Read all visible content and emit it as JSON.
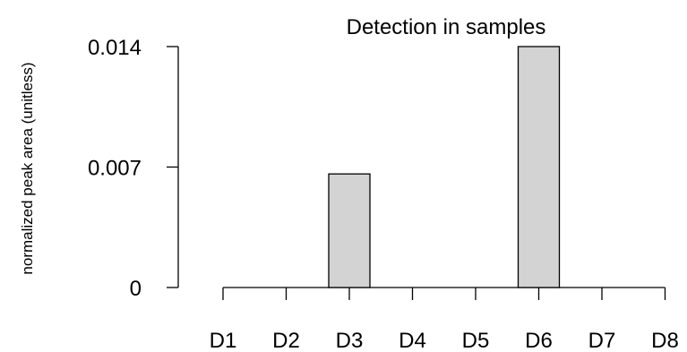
{
  "chart_data": {
    "type": "bar",
    "title": "Detection in samples",
    "xlabel": "",
    "ylabel": "normalized peak area (unitless)",
    "categories": [
      "D1",
      "D2",
      "D3",
      "D4",
      "D5",
      "D6",
      "D7",
      "D8"
    ],
    "values": [
      0,
      0,
      0.0066,
      0,
      0,
      0.014,
      0,
      0
    ],
    "ylim": [
      0,
      0.014
    ],
    "yticks": [
      "0",
      "0.007",
      "0.014"
    ],
    "yticks_values": [
      0,
      0.007,
      0.014
    ],
    "grid": false,
    "legend": "none",
    "bar_color": "#d3d3d3",
    "bar_stroke": "#000000"
  }
}
